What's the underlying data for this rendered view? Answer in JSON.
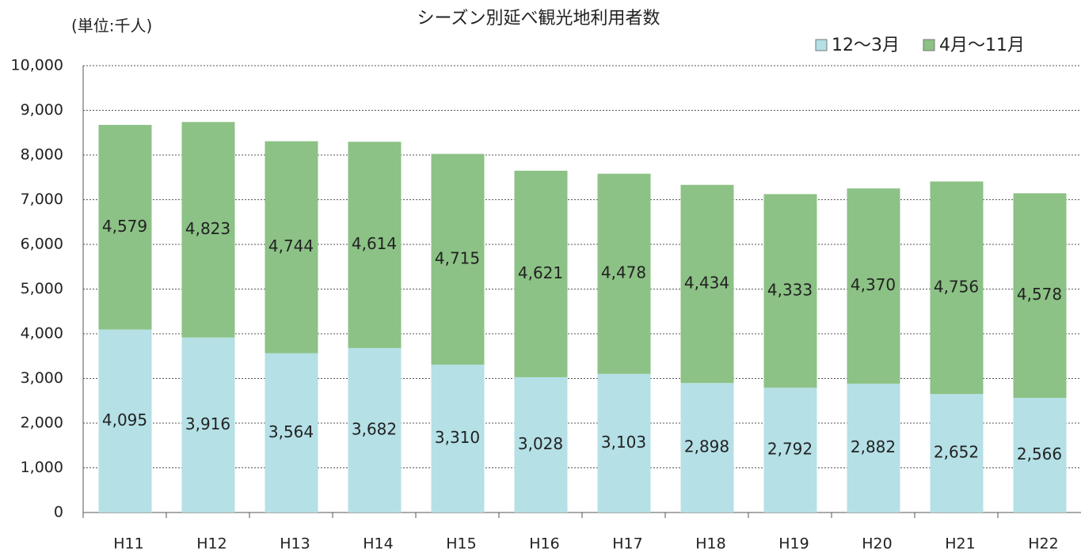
{
  "chart_data": {
    "type": "stacked_bar",
    "title": "シーズン別延べ観光地利用者数",
    "unit_label": "(単位:千人)",
    "categories": [
      "H11",
      "H12",
      "H13",
      "H14",
      "H15",
      "H16",
      "H17",
      "H18",
      "H19",
      "H20",
      "H21",
      "H22"
    ],
    "series": [
      {
        "name": "12〜3月",
        "color": "#b4e0e6",
        "values": [
          4095,
          3916,
          3564,
          3682,
          3310,
          3028,
          3103,
          2898,
          2792,
          2882,
          2652,
          2566
        ],
        "value_labels": [
          "4,095",
          "3,916",
          "3,564",
          "3,682",
          "3,310",
          "3,028",
          "3,103",
          "2,898",
          "2,792",
          "2,882",
          "2,652",
          "2,566"
        ]
      },
      {
        "name": "4月〜11月",
        "color": "#8cc285",
        "values": [
          4579,
          4823,
          4744,
          4614,
          4715,
          4621,
          4478,
          4434,
          4333,
          4370,
          4756,
          4578
        ],
        "value_labels": [
          "4,579",
          "4,823",
          "4,744",
          "4,614",
          "4,715",
          "4,621",
          "4,478",
          "4,434",
          "4,333",
          "4,370",
          "4,756",
          "4,578"
        ]
      }
    ],
    "ylim": [
      0,
      10000
    ],
    "yticks": [
      0,
      {
        "value": 1000,
        "label": "1,000"
      },
      {
        "value": 2000,
        "label": "2,000"
      },
      {
        "value": 3000,
        "label": "3,000"
      },
      {
        "value": 4000,
        "label": "4,000"
      },
      {
        "value": 5000,
        "label": "5,000"
      },
      {
        "value": 6000,
        "label": "6,000"
      },
      {
        "value": 7000,
        "label": "7,000"
      },
      {
        "value": 8000,
        "label": "8,000"
      },
      {
        "value": 9000,
        "label": "9,000"
      },
      {
        "value": 10000,
        "label": "10,000"
      }
    ],
    "grid": true,
    "legend": "top-right"
  }
}
